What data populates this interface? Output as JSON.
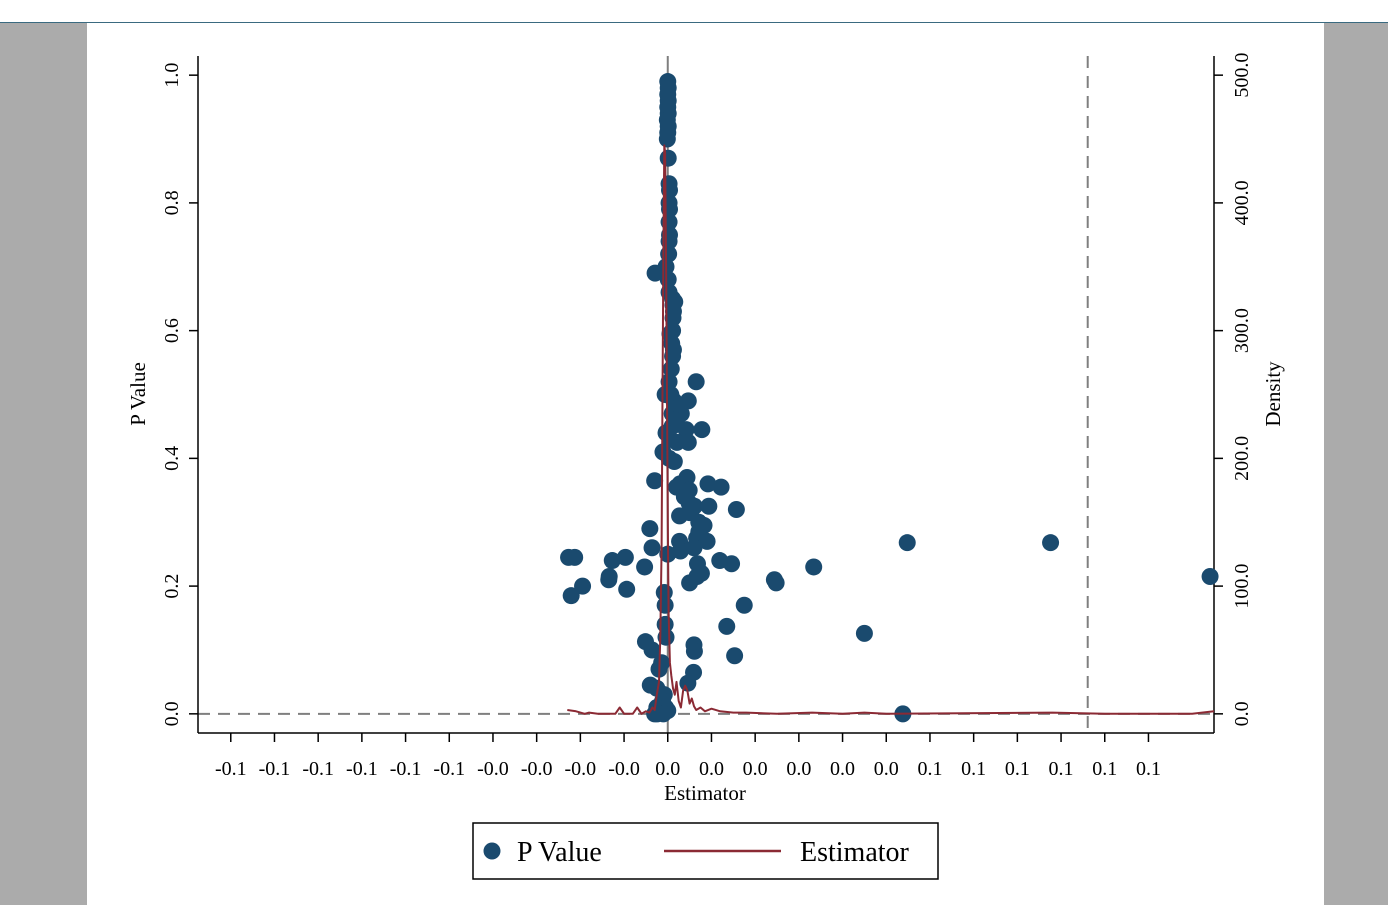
{
  "chart_data": {
    "type": "scatter",
    "xlabel": "Estimator",
    "ylabel_left": "P Value",
    "ylabel_right": "Density",
    "x_tick_labels": [
      "-0.1",
      "-0.1",
      "-0.1",
      "-0.1",
      "-0.1",
      "-0.1",
      "-0.0",
      "-0.0",
      "-0.0",
      "-0.0",
      "0.0",
      "0.0",
      "0.0",
      "0.0",
      "0.0",
      "0.0",
      "0.1",
      "0.1",
      "0.1",
      "0.1",
      "0.1",
      "0.1"
    ],
    "xlim": [
      -0.1075,
      0.125
    ],
    "y_left_ticks": [
      0.0,
      0.2,
      0.4,
      0.6,
      0.8,
      1.0
    ],
    "y_left_tick_labels": [
      "0.0",
      "0.2",
      "0.4",
      "0.6",
      "0.8",
      "1.0"
    ],
    "ylim_left": [
      -0.03,
      1.03
    ],
    "y_right_ticks": [
      0,
      100,
      200,
      300,
      400,
      500
    ],
    "y_right_tick_labels": [
      "0.0",
      "100.0",
      "200.0",
      "300.0",
      "400.0",
      "500.0"
    ],
    "ylim_right": [
      -15,
      515
    ],
    "reference_lines": [
      {
        "axis": "x",
        "value": 0.0,
        "style": "solid"
      },
      {
        "axis": "x",
        "value": 0.0961,
        "style": "dashed"
      },
      {
        "axis": "y",
        "value": 0.0,
        "style": "dashed"
      }
    ],
    "legend": {
      "position": "bottom",
      "entries": [
        "P Value",
        "Estimator"
      ]
    },
    "colors": {
      "p_value": "#1a4a6e",
      "estimator": "#8b2a34",
      "reference": "#7f7f7f"
    },
    "series": [
      {
        "name": "P Value",
        "kind": "scatter",
        "axis": "left",
        "points": [
          [
            0.0,
            0.99
          ],
          [
            0.0001,
            0.98
          ],
          [
            0.0,
            0.97
          ],
          [
            0.0001,
            0.96
          ],
          [
            0.0,
            0.95
          ],
          [
            0.0001,
            0.94
          ],
          [
            -0.0001,
            0.93
          ],
          [
            0.0001,
            0.92
          ],
          [
            0.0,
            0.91
          ],
          [
            -0.0001,
            0.9
          ],
          [
            0.0001,
            0.87
          ],
          [
            0.0003,
            0.83
          ],
          [
            0.0004,
            0.82
          ],
          [
            0.0003,
            0.8
          ],
          [
            0.0004,
            0.79
          ],
          [
            0.0003,
            0.77
          ],
          [
            0.0004,
            0.75
          ],
          [
            0.0003,
            0.74
          ],
          [
            0.0002,
            0.72
          ],
          [
            -0.0029,
            0.69
          ],
          [
            -0.0004,
            0.7
          ],
          [
            0.0001,
            0.68
          ],
          [
            0.0003,
            0.66
          ],
          [
            0.0011,
            0.65
          ],
          [
            0.0016,
            0.645
          ],
          [
            0.0012,
            0.64
          ],
          [
            0.0013,
            0.63
          ],
          [
            0.0012,
            0.62
          ],
          [
            0.0011,
            0.6
          ],
          [
            0.0005,
            0.595
          ],
          [
            0.0009,
            0.58
          ],
          [
            0.0013,
            0.57
          ],
          [
            0.0011,
            0.56
          ],
          [
            0.0008,
            0.54
          ],
          [
            0.0003,
            0.52
          ],
          [
            0.0065,
            0.52
          ],
          [
            0.0007,
            0.5
          ],
          [
            -0.0006,
            0.5
          ],
          [
            0.0014,
            0.49
          ],
          [
            0.0047,
            0.49
          ],
          [
            0.0025,
            0.48
          ],
          [
            0.001,
            0.47
          ],
          [
            0.0031,
            0.47
          ],
          [
            0.0017,
            0.46
          ],
          [
            0.001,
            0.45
          ],
          [
            0.0042,
            0.445
          ],
          [
            0.0078,
            0.445
          ],
          [
            -0.0004,
            0.44
          ],
          [
            0.0005,
            0.43
          ],
          [
            0.0021,
            0.425
          ],
          [
            0.0047,
            0.425
          ],
          [
            0.0015,
            0.395
          ],
          [
            -0.0011,
            0.41
          ],
          [
            0.0003,
            0.4
          ],
          [
            0.0044,
            0.37
          ],
          [
            0.0028,
            0.36
          ],
          [
            -0.003,
            0.365
          ],
          [
            0.0092,
            0.36
          ],
          [
            0.0122,
            0.355
          ],
          [
            0.002,
            0.355
          ],
          [
            0.0049,
            0.35
          ],
          [
            0.0043,
            0.345
          ],
          [
            0.0038,
            0.34
          ],
          [
            0.0049,
            0.33
          ],
          [
            0.0094,
            0.325
          ],
          [
            0.0157,
            0.32
          ],
          [
            0.0061,
            0.325
          ],
          [
            0.0055,
            0.32
          ],
          [
            0.0027,
            0.31
          ],
          [
            0.005,
            0.315
          ],
          [
            0.0071,
            0.3
          ],
          [
            0.0083,
            0.295
          ],
          [
            -0.0041,
            0.29
          ],
          [
            0.0071,
            0.285
          ],
          [
            0.0066,
            0.275
          ],
          [
            0.009,
            0.27
          ],
          [
            0.0027,
            0.27
          ],
          [
            0.006,
            0.26
          ],
          [
            0.0029,
            0.255
          ],
          [
            -0.0036,
            0.26
          ],
          [
            0.0,
            0.25
          ],
          [
            0.0119,
            0.24
          ],
          [
            0.0146,
            0.235
          ],
          [
            0.0068,
            0.235
          ],
          [
            0.0077,
            0.22
          ],
          [
            0.0067,
            0.215
          ],
          [
            -0.0053,
            0.23
          ],
          [
            -0.0097,
            0.245
          ],
          [
            -0.0127,
            0.24
          ],
          [
            -0.0134,
            0.215
          ],
          [
            -0.0135,
            0.21
          ],
          [
            -0.0094,
            0.195
          ],
          [
            -0.0195,
            0.2
          ],
          [
            -0.0227,
            0.245
          ],
          [
            -0.0213,
            0.245
          ],
          [
            -0.0221,
            0.185
          ],
          [
            0.005,
            0.205
          ],
          [
            0.0244,
            0.21
          ],
          [
            0.0248,
            0.205
          ],
          [
            0.0334,
            0.23
          ],
          [
            0.0548,
            0.268
          ],
          [
            0.0876,
            0.268
          ],
          [
            0.1241,
            0.215
          ],
          [
            0.0175,
            0.17
          ],
          [
            0.0135,
            0.137
          ],
          [
            0.045,
            0.126
          ],
          [
            0.0153,
            0.091
          ],
          [
            -0.0051,
            0.113
          ],
          [
            0.006,
            0.108
          ],
          [
            0.0061,
            0.098
          ],
          [
            0.0059,
            0.065
          ],
          [
            -0.0036,
            0.1
          ],
          [
            -0.0014,
            0.08
          ],
          [
            -0.002,
            0.07
          ],
          [
            0.0046,
            0.048
          ],
          [
            -0.004,
            0.045
          ],
          [
            -0.0025,
            0.04
          ],
          [
            -0.0008,
            0.03
          ],
          [
            -0.0012,
            0.02
          ],
          [
            -0.0025,
            0.01
          ],
          [
            -0.002,
            0.005
          ],
          [
            -0.003,
            0.0
          ],
          [
            -0.0024,
            0.0
          ],
          [
            -0.0015,
            0.002
          ],
          [
            -0.0005,
            0.01
          ],
          [
            0.0,
            0.005
          ],
          [
            -0.001,
            0.0
          ],
          [
            0.0538,
            0.0
          ],
          [
            -0.0004,
            0.12
          ],
          [
            -0.0006,
            0.14
          ],
          [
            -0.0006,
            0.17
          ],
          [
            -0.0008,
            0.19
          ]
        ]
      },
      {
        "name": "Estimator",
        "kind": "density",
        "axis": "right",
        "points": [
          [
            -0.023,
            3
          ],
          [
            -0.021,
            2
          ],
          [
            -0.02,
            1
          ],
          [
            -0.019,
            0
          ],
          [
            -0.018,
            1
          ],
          [
            -0.016,
            0
          ],
          [
            -0.012,
            0
          ],
          [
            -0.011,
            5
          ],
          [
            -0.01,
            0
          ],
          [
            -0.008,
            0
          ],
          [
            -0.007,
            5
          ],
          [
            -0.006,
            0
          ],
          [
            -0.005,
            2
          ],
          [
            -0.0042,
            1
          ],
          [
            -0.0035,
            5
          ],
          [
            -0.003,
            3
          ],
          [
            -0.0025,
            15
          ],
          [
            -0.002,
            25
          ],
          [
            -0.0017,
            60
          ],
          [
            -0.0014,
            130
          ],
          [
            -0.0012,
            250
          ],
          [
            -0.001,
            360
          ],
          [
            -0.0008,
            445
          ],
          [
            -0.0006,
            440
          ],
          [
            -0.0004,
            360
          ],
          [
            -0.0002,
            260
          ],
          [
            0.0,
            150
          ],
          [
            0.0002,
            80
          ],
          [
            0.0005,
            40
          ],
          [
            0.0008,
            30
          ],
          [
            0.0012,
            20
          ],
          [
            0.0016,
            15
          ],
          [
            0.002,
            25
          ],
          [
            0.0025,
            10
          ],
          [
            0.003,
            5
          ],
          [
            0.0035,
            18
          ],
          [
            0.004,
            22
          ],
          [
            0.0045,
            18
          ],
          [
            0.005,
            8
          ],
          [
            0.0055,
            12
          ],
          [
            0.006,
            6
          ],
          [
            0.0065,
            3
          ],
          [
            0.0075,
            5
          ],
          [
            0.0085,
            2
          ],
          [
            0.01,
            4
          ],
          [
            0.012,
            2
          ],
          [
            0.015,
            1
          ],
          [
            0.018,
            1
          ],
          [
            0.025,
            0
          ],
          [
            0.033,
            1
          ],
          [
            0.04,
            0
          ],
          [
            0.045,
            1
          ],
          [
            0.05,
            0
          ],
          [
            0.088,
            1
          ],
          [
            0.1,
            0
          ],
          [
            0.12,
            0
          ],
          [
            0.125,
            2
          ]
        ]
      }
    ]
  }
}
